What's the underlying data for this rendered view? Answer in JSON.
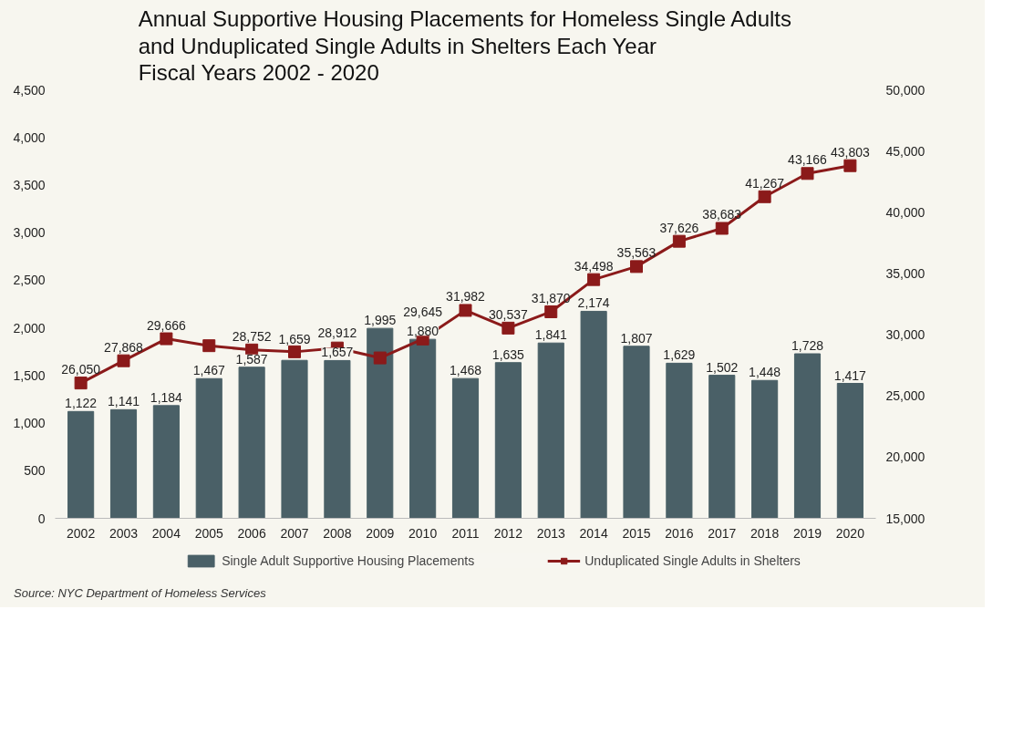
{
  "chart_data": {
    "type": "bar",
    "title": "Annual Supportive Housing Placements for Homeless Single Adults\nand Unduplicated Single Adults in Shelters Each Year\nFiscal Years 2002 - 2020",
    "categories": [
      "2002",
      "2003",
      "2004",
      "2005",
      "2006",
      "2007",
      "2008",
      "2009",
      "2010",
      "2011",
      "2012",
      "2013",
      "2014",
      "2015",
      "2016",
      "2017",
      "2018",
      "2019",
      "2020"
    ],
    "series": [
      {
        "name": "Single Adult Supportive Housing Placements",
        "color": "#4a6067",
        "values": [
          1122,
          1141,
          1184,
          1467,
          1587,
          1659,
          1657,
          1995,
          1880,
          1468,
          1635,
          1841,
          2174,
          1807,
          1629,
          1502,
          1448,
          1728,
          1417
        ],
        "value_labels": [
          "1,122",
          "1,141",
          "1,184",
          "1,467",
          "1,587",
          "1,659",
          "1,657",
          "1,995",
          "1,880",
          "1,468",
          "1,635",
          "1,841",
          "2,174",
          "1,807",
          "1,629",
          "1,502",
          "1,448",
          "1,728",
          "1,417"
        ]
      },
      {
        "name": "Unduplicated Single Adults in Shelters",
        "type": "line",
        "axis": "y2",
        "color": "#8b1a1a",
        "marker": "square",
        "values": [
          26050,
          27868,
          29666,
          29100,
          28752,
          28600,
          28912,
          28100,
          29645,
          31982,
          30537,
          31870,
          34498,
          35563,
          37626,
          38683,
          41267,
          43166,
          43803
        ],
        "value_labels": [
          "26,050",
          "27,868",
          "29,666",
          null,
          "28,752",
          null,
          "28,912",
          null,
          "29,645",
          "31,982",
          "30,537",
          "31,870",
          "34,498",
          "35,563",
          "37,626",
          "38,683",
          "41,267",
          "43,166",
          "43,803"
        ]
      }
    ],
    "ylim": [
      0,
      4500
    ],
    "yticks": [
      {
        "value": 0,
        "label": "0"
      },
      {
        "value": 500,
        "label": "500"
      },
      {
        "value": 1000,
        "label": "1,000"
      },
      {
        "value": 1500,
        "label": "1,500"
      },
      {
        "value": 2000,
        "label": "2,000"
      },
      {
        "value": 2500,
        "label": "2,500"
      },
      {
        "value": 3000,
        "label": "3,000"
      },
      {
        "value": 3500,
        "label": "3,500"
      },
      {
        "value": 4000,
        "label": "4,000"
      },
      {
        "value": 4500,
        "label": "4,500"
      }
    ],
    "y2lim": [
      15000,
      50000
    ],
    "y2ticks": [
      {
        "value": 15000,
        "label": "15,000"
      },
      {
        "value": 20000,
        "label": "20,000"
      },
      {
        "value": 25000,
        "label": "25,000"
      },
      {
        "value": 30000,
        "label": "30,000"
      },
      {
        "value": 35000,
        "label": "35,000"
      },
      {
        "value": 40000,
        "label": "40,000"
      },
      {
        "value": 45000,
        "label": "45,000"
      },
      {
        "value": 50000,
        "label": "50,000"
      }
    ],
    "legend": "bottom",
    "grid": false,
    "annotations": [
      "Source: NYC Department of Homeless Services"
    ]
  }
}
